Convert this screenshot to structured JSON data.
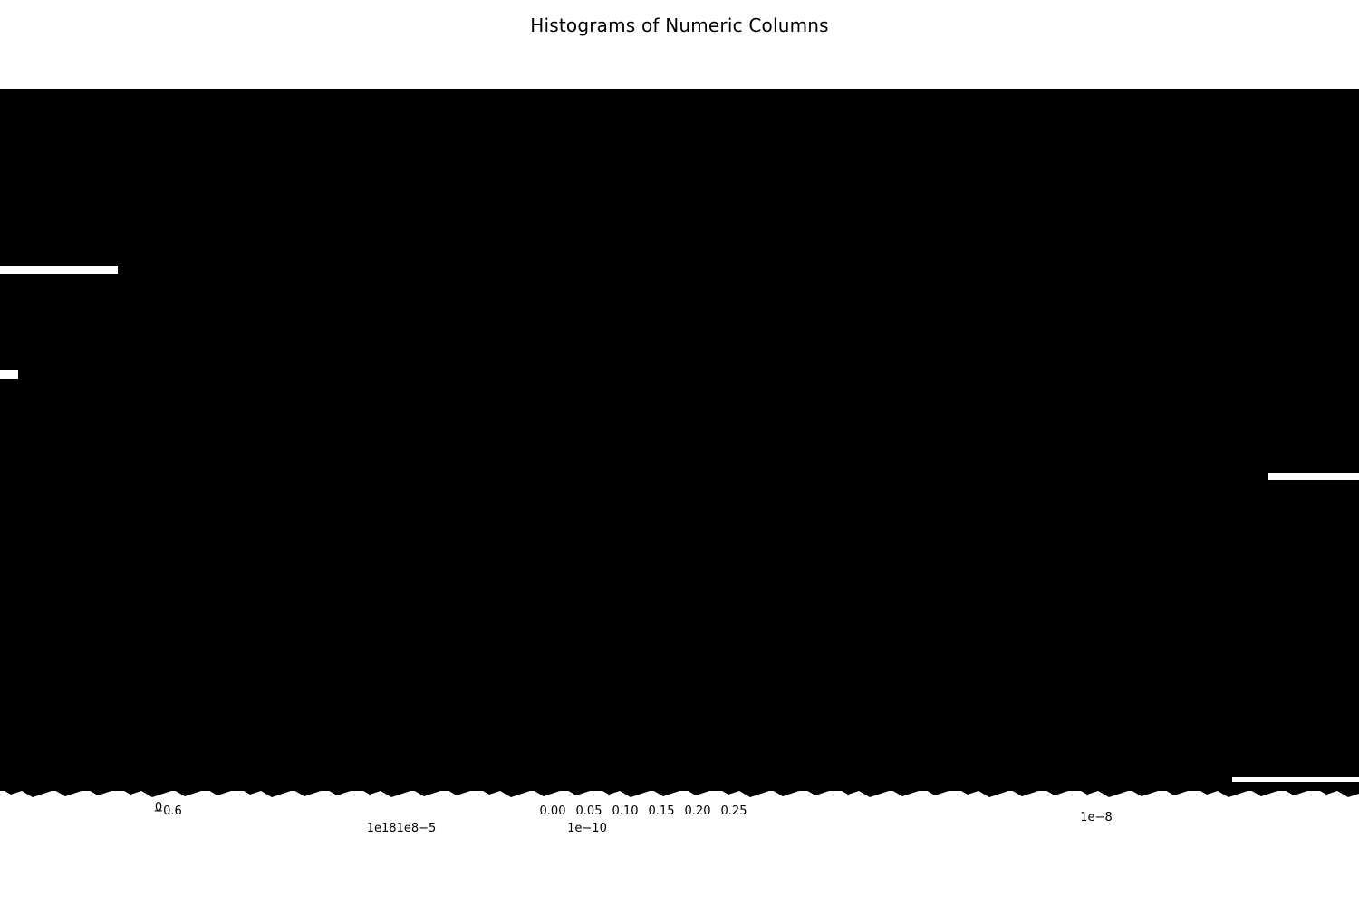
{
  "figure": {
    "title": "Histograms of Numeric Columns"
  },
  "colors": {
    "ink": "#000000",
    "background": "#ffffff"
  },
  "chart_data": {
    "type": "bar",
    "title": "Histograms of Numeric Columns",
    "xlabel": "",
    "ylabel": "",
    "grid": false,
    "legend": "none",
    "note": "Grid of many overlapping histogram subplots rendered into a single area; individual bins and axes are not legible.",
    "x_offset_labels": [
      "1e181e8−5",
      "1e−10",
      "1e−8"
    ],
    "visible_x_tick_labels": [
      "0",
      "−0.6",
      "0.00",
      "0.05",
      "0.10",
      "0.15",
      "0.20",
      "0.25"
    ]
  }
}
